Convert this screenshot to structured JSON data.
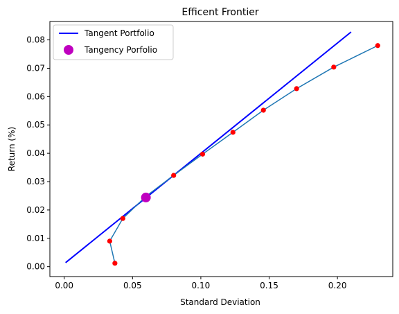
{
  "chart_data": {
    "type": "line",
    "title": "Efficent Frontier",
    "xlabel": "Standard Deviation",
    "ylabel": "Return (%)",
    "xlim": [
      -0.0105,
      0.2405
    ],
    "ylim": [
      -0.0035,
      0.0865
    ],
    "xticks": [
      0.0,
      0.05,
      0.1,
      0.15,
      0.2
    ],
    "xtick_labels": [
      "0.00",
      "0.05",
      "0.10",
      "0.15",
      "0.20"
    ],
    "yticks": [
      0.0,
      0.01,
      0.02,
      0.03,
      0.04,
      0.05,
      0.06,
      0.07,
      0.08
    ],
    "ytick_labels": [
      "0.00",
      "0.01",
      "0.02",
      "0.03",
      "0.04",
      "0.05",
      "0.06",
      "0.07",
      "0.08"
    ],
    "grid": false,
    "legend_position": "top-left",
    "frontier": {
      "color": "#1f77b4",
      "marker_color": "#ff0000",
      "x": [
        0.0371,
        0.0333,
        0.0429,
        0.0598,
        0.0801,
        0.1013,
        0.1235,
        0.1458,
        0.1701,
        0.1973,
        0.2295
      ],
      "y": [
        0.0012,
        0.009,
        0.017,
        0.0248,
        0.0322,
        0.0397,
        0.0474,
        0.0552,
        0.0628,
        0.0704,
        0.078
      ]
    },
    "series": [
      {
        "name": "Tangent Portfolio",
        "color": "#0000ff",
        "x": [
          0.001,
          0.21
        ],
        "y": [
          0.0014,
          0.0828
        ]
      },
      {
        "name": "Tangency Porfolio",
        "color": "#bf00bf",
        "x": [
          0.0598
        ],
        "y": [
          0.0244
        ]
      }
    ]
  }
}
